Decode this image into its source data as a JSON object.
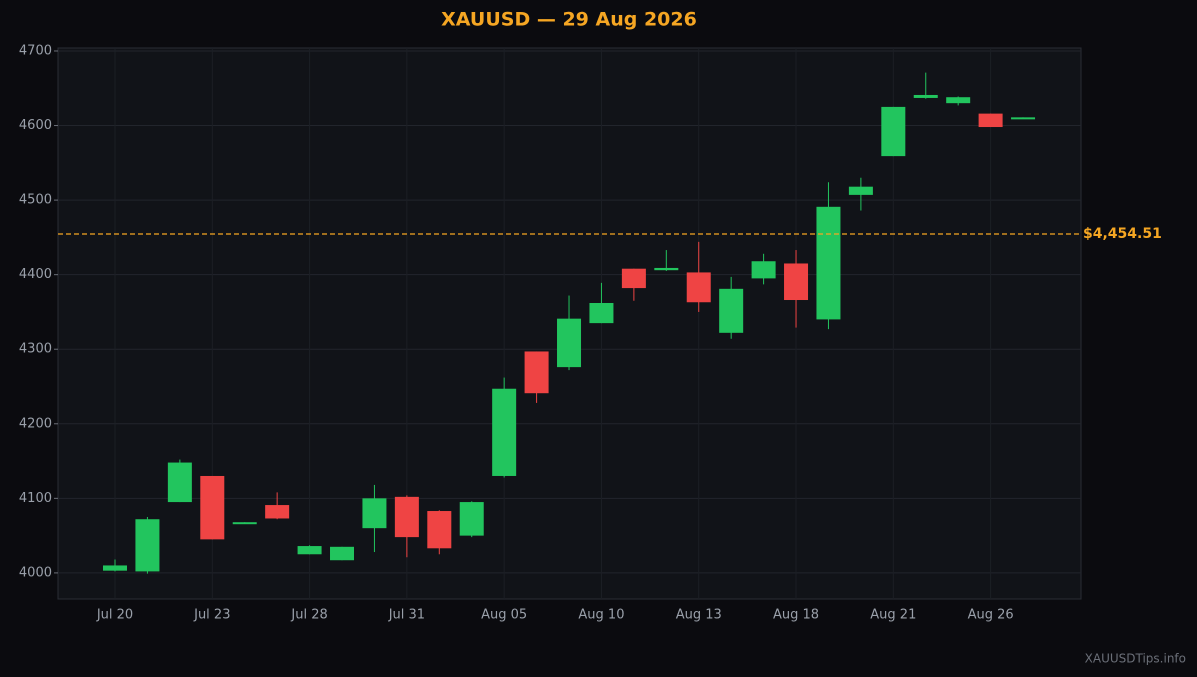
{
  "chart_data": {
    "type": "candlestick",
    "title": "XAUUSD — 29 Aug 2026",
    "categories": [
      "Jul 20",
      null,
      null,
      "Jul 23",
      null,
      null,
      "Jul 28",
      null,
      null,
      "Jul 31",
      null,
      null,
      "Aug 05",
      null,
      null,
      "Aug 10",
      null,
      null,
      "Aug 13",
      null,
      null,
      "Aug 18",
      null,
      null,
      "Aug 21",
      null,
      null,
      "Aug 26",
      null
    ],
    "open": [
      4003,
      4002,
      4095,
      4130,
      4066,
      4091,
      4025,
      4017,
      4060,
      4102,
      4083,
      4050,
      4130,
      4297,
      4276,
      4335,
      4408,
      4406,
      4403,
      4322,
      4395,
      4415,
      4340,
      4507,
      4559,
      4637,
      4630,
      4616,
      4609
    ],
    "high": [
      4018,
      4075,
      4152,
      4130,
      4068,
      4108,
      4037,
      4035,
      4118,
      4104,
      4084,
      4096,
      4262,
      4297,
      4372,
      4389,
      4408,
      4433,
      4444,
      4397,
      4428,
      4433,
      4524,
      4530,
      4625,
      4671,
      4639,
      4616,
      4611
    ],
    "low": [
      4002,
      3999,
      4095,
      4045,
      4066,
      4072,
      4025,
      4017,
      4028,
      4021,
      4025,
      4048,
      4128,
      4228,
      4272,
      4335,
      4365,
      4405,
      4350,
      4314,
      4387,
      4329,
      4327,
      4486,
      4559,
      4636,
      4627,
      4598,
      4609
    ],
    "close": [
      4010,
      4072,
      4148,
      4045,
      4068,
      4073,
      4036,
      4035,
      4100,
      4048,
      4033,
      4095,
      4247,
      4241,
      4341,
      4362,
      4382,
      4409,
      4363,
      4381,
      4418,
      4366,
      4491,
      4518,
      4625,
      4641,
      4638,
      4598,
      4611
    ],
    "up_color": "#22c55e",
    "down_color": "#ef4444",
    "ylim": [
      3965,
      4704
    ],
    "yticks": [
      4000,
      4100,
      4200,
      4300,
      4400,
      4500,
      4600,
      4700
    ],
    "grid": true,
    "reference_line": {
      "value": 4454.51,
      "label": "$4,454.51",
      "color": "#f5a623"
    },
    "watermark": "XAUUSDTips.info"
  }
}
